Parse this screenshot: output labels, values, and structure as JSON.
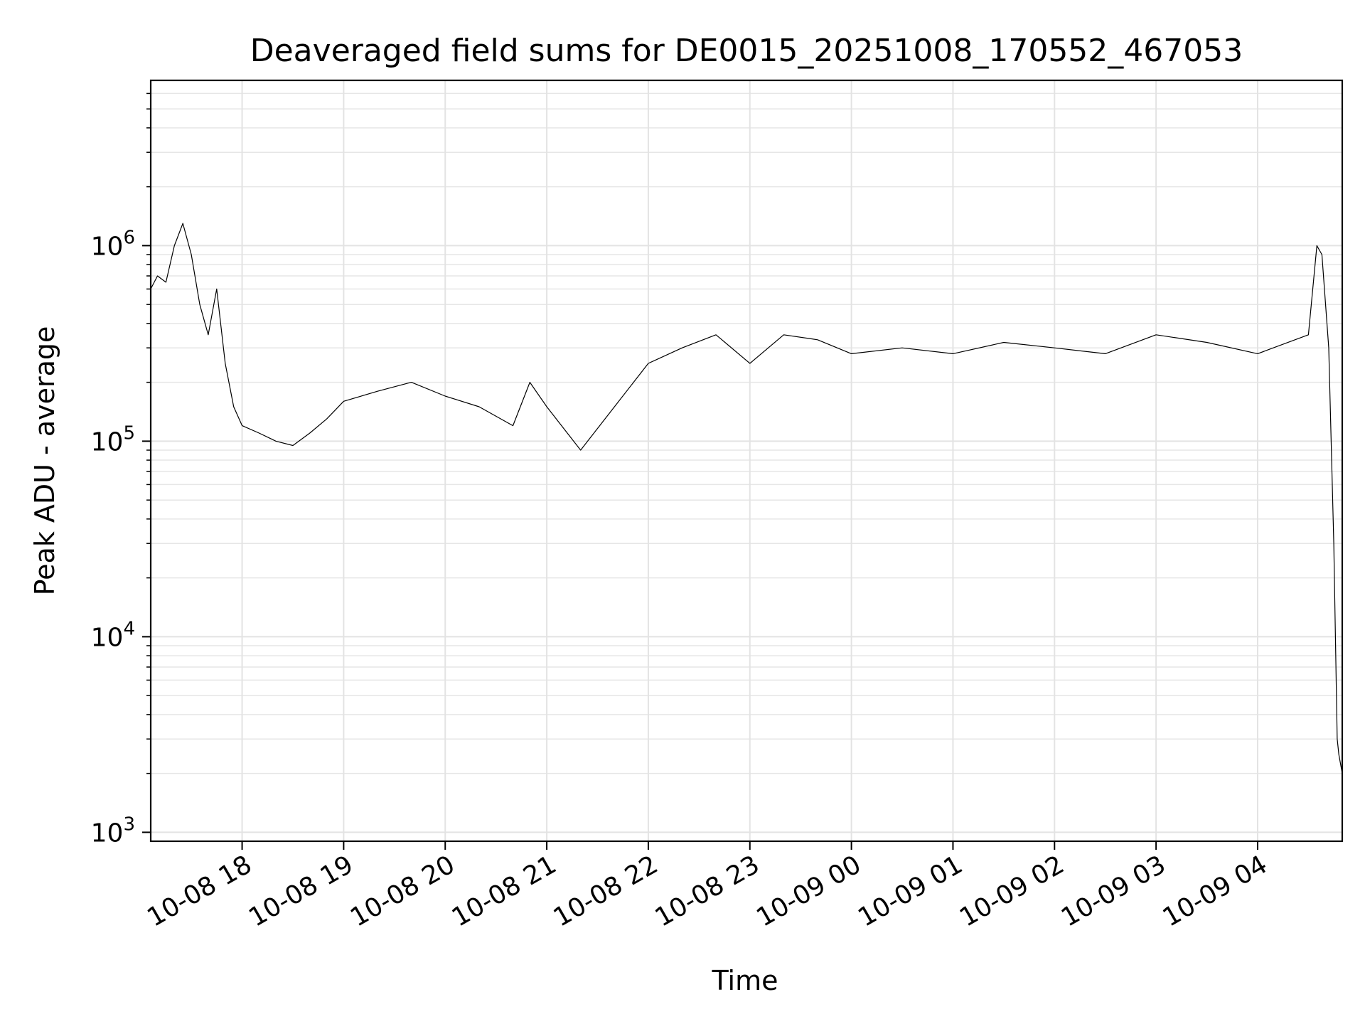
{
  "chart_data": {
    "type": "line",
    "title": "Deaveraged field sums for DE0015_20251008_170552_467053",
    "xlabel": "Time",
    "ylabel": "Peak ADU - average",
    "y_scale": "log",
    "ylim": [
      900,
      7000000
    ],
    "xlim": [
      "2025-10-08 17:06",
      "2025-10-09 04:50"
    ],
    "grid": true,
    "x_ticks": [
      {
        "label": "10-08 18",
        "value": "2025-10-08 18:00"
      },
      {
        "label": "10-08 19",
        "value": "2025-10-08 19:00"
      },
      {
        "label": "10-08 20",
        "value": "2025-10-08 20:00"
      },
      {
        "label": "10-08 21",
        "value": "2025-10-08 21:00"
      },
      {
        "label": "10-08 22",
        "value": "2025-10-08 22:00"
      },
      {
        "label": "10-08 23",
        "value": "2025-10-08 23:00"
      },
      {
        "label": "10-09 00",
        "value": "2025-10-09 00:00"
      },
      {
        "label": "10-09 01",
        "value": "2025-10-09 01:00"
      },
      {
        "label": "10-09 02",
        "value": "2025-10-09 02:00"
      },
      {
        "label": "10-09 03",
        "value": "2025-10-09 03:00"
      },
      {
        "label": "10-09 04",
        "value": "2025-10-09 04:00"
      }
    ],
    "y_ticks": [
      {
        "base": "10",
        "exp": "3",
        "value": 1000
      },
      {
        "base": "10",
        "exp": "4",
        "value": 10000
      },
      {
        "base": "10",
        "exp": "5",
        "value": 100000
      },
      {
        "base": "10",
        "exp": "6",
        "value": 1000000
      }
    ],
    "series": [
      {
        "color": "#000000",
        "points": [
          [
            "2025-10-08 17:06",
            600000
          ],
          [
            "2025-10-08 17:10",
            700000
          ],
          [
            "2025-10-08 17:15",
            650000
          ],
          [
            "2025-10-08 17:20",
            1000000
          ],
          [
            "2025-10-08 17:25",
            1300000
          ],
          [
            "2025-10-08 17:30",
            900000
          ],
          [
            "2025-10-08 17:35",
            500000
          ],
          [
            "2025-10-08 17:40",
            350000
          ],
          [
            "2025-10-08 17:45",
            600000
          ],
          [
            "2025-10-08 17:50",
            250000
          ],
          [
            "2025-10-08 17:55",
            150000
          ],
          [
            "2025-10-08 18:00",
            120000
          ],
          [
            "2025-10-08 18:10",
            110000
          ],
          [
            "2025-10-08 18:20",
            100000
          ],
          [
            "2025-10-08 18:30",
            95000
          ],
          [
            "2025-10-08 18:40",
            110000
          ],
          [
            "2025-10-08 18:50",
            130000
          ],
          [
            "2025-10-08 19:00",
            160000
          ],
          [
            "2025-10-08 19:20",
            180000
          ],
          [
            "2025-10-08 19:40",
            200000
          ],
          [
            "2025-10-08 20:00",
            170000
          ],
          [
            "2025-10-08 20:20",
            150000
          ],
          [
            "2025-10-08 20:40",
            120000
          ],
          [
            "2025-10-08 20:50",
            200000
          ],
          [
            "2025-10-08 21:00",
            150000
          ],
          [
            "2025-10-08 21:20",
            90000
          ],
          [
            "2025-10-08 21:40",
            150000
          ],
          [
            "2025-10-08 22:00",
            250000
          ],
          [
            "2025-10-08 22:20",
            300000
          ],
          [
            "2025-10-08 22:40",
            350000
          ],
          [
            "2025-10-08 23:00",
            250000
          ],
          [
            "2025-10-08 23:20",
            350000
          ],
          [
            "2025-10-08 23:40",
            330000
          ],
          [
            "2025-10-09 00:00",
            280000
          ],
          [
            "2025-10-09 00:30",
            300000
          ],
          [
            "2025-10-09 01:00",
            280000
          ],
          [
            "2025-10-09 01:30",
            320000
          ],
          [
            "2025-10-09 02:00",
            300000
          ],
          [
            "2025-10-09 02:30",
            280000
          ],
          [
            "2025-10-09 03:00",
            350000
          ],
          [
            "2025-10-09 03:30",
            320000
          ],
          [
            "2025-10-09 04:00",
            280000
          ],
          [
            "2025-10-09 04:30",
            350000
          ],
          [
            "2025-10-09 04:35",
            1000000
          ],
          [
            "2025-10-09 04:38",
            900000
          ],
          [
            "2025-10-09 04:42",
            300000
          ],
          [
            "2025-10-09 04:45",
            30000
          ],
          [
            "2025-10-09 04:47",
            3000
          ],
          [
            "2025-10-09 04:48",
            2500
          ],
          [
            "2025-10-09 04:50",
            2000
          ]
        ]
      }
    ]
  }
}
